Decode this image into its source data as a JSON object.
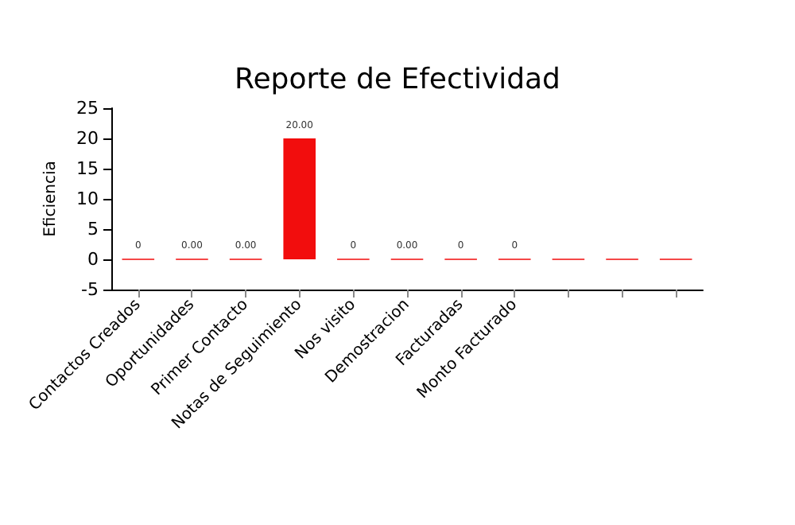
{
  "chart_data": {
    "type": "bar",
    "title": "Reporte de Efectividad",
    "ylabel": "Eficiencia",
    "categories": [
      "Contactos Creados",
      "Oportunidades",
      "Primer Contacto",
      "Notas de Seguimiento",
      "Nos visito",
      "Demostracion",
      "Facturadas",
      "Monto Facturado",
      null,
      null,
      null
    ],
    "values": [
      0,
      0,
      0,
      20,
      0,
      0,
      0,
      0,
      0,
      0,
      0
    ],
    "value_labels": [
      "0",
      "0.00",
      "0.00",
      "20.00",
      "0",
      "0.00",
      "0",
      "0",
      null,
      null,
      null
    ],
    "color": "#f20d0d",
    "ylim": [
      -5,
      25
    ],
    "yticks": [
      -5,
      0,
      5,
      10,
      15,
      20,
      25
    ],
    "grid": false
  }
}
